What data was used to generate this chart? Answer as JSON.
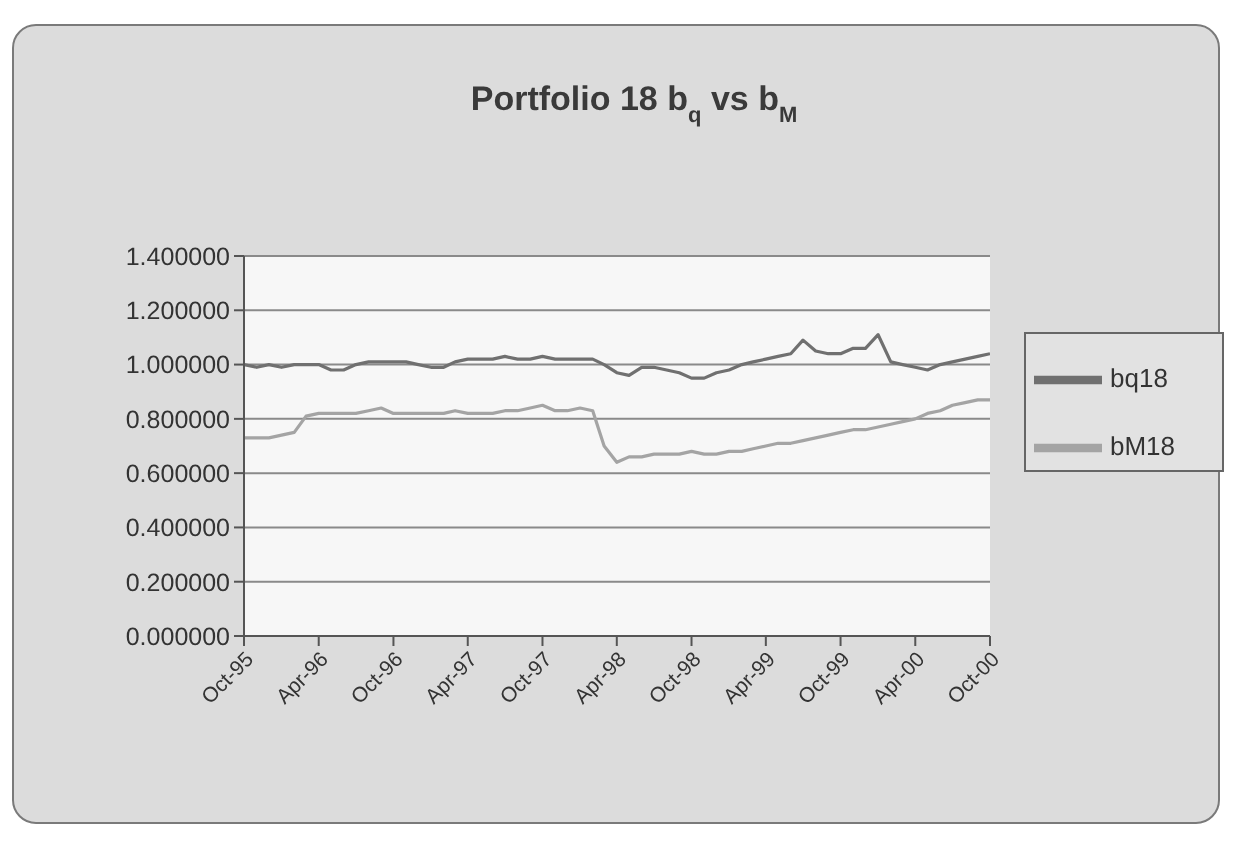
{
  "chart_data": {
    "type": "line",
    "title": "Portfolio 18 b$_{q}$ vs b$_{M}$",
    "x": [
      "1995-10",
      "1995-11",
      "1995-12",
      "1996-01",
      "1996-02",
      "1996-03",
      "1996-04",
      "1996-05",
      "1996-06",
      "1996-07",
      "1996-08",
      "1996-09",
      "1996-10",
      "1996-11",
      "1996-12",
      "1997-01",
      "1997-02",
      "1997-03",
      "1997-04",
      "1997-05",
      "1997-06",
      "1997-07",
      "1997-08",
      "1997-09",
      "1997-10",
      "1997-11",
      "1997-12",
      "1998-01",
      "1998-02",
      "1998-03",
      "1998-04",
      "1998-05",
      "1998-06",
      "1998-07",
      "1998-08",
      "1998-09",
      "1998-10",
      "1998-11",
      "1998-12",
      "1999-01",
      "1999-02",
      "1999-03",
      "1999-04",
      "1999-05",
      "1999-06",
      "1999-07",
      "1999-08",
      "1999-09",
      "1999-10",
      "1999-11",
      "1999-12",
      "2000-01",
      "2000-02",
      "2000-03",
      "2000-04",
      "2000-05",
      "2000-06",
      "2000-07",
      "2000-08",
      "2000-09",
      "2000-10"
    ],
    "series": [
      {
        "name": "bq18",
        "color": "#707070",
        "values": [
          1.0,
          0.99,
          1.0,
          0.99,
          1.0,
          1.0,
          1.0,
          0.98,
          0.98,
          1.0,
          1.01,
          1.01,
          1.01,
          1.01,
          1.0,
          0.99,
          0.99,
          1.01,
          1.02,
          1.02,
          1.02,
          1.03,
          1.02,
          1.02,
          1.03,
          1.02,
          1.02,
          1.02,
          1.02,
          1.0,
          0.97,
          0.96,
          0.99,
          0.99,
          0.98,
          0.97,
          0.95,
          0.95,
          0.97,
          0.98,
          1.0,
          1.01,
          1.02,
          1.03,
          1.04,
          1.09,
          1.05,
          1.04,
          1.04,
          1.06,
          1.06,
          1.11,
          1.01,
          1.0,
          0.99,
          0.98,
          1.0,
          1.01,
          1.02,
          1.03,
          1.04
        ]
      },
      {
        "name": "bM18",
        "color": "#a4a4a4",
        "values": [
          0.73,
          0.73,
          0.73,
          0.74,
          0.75,
          0.81,
          0.82,
          0.82,
          0.82,
          0.82,
          0.83,
          0.84,
          0.82,
          0.82,
          0.82,
          0.82,
          0.82,
          0.83,
          0.82,
          0.82,
          0.82,
          0.83,
          0.83,
          0.84,
          0.85,
          0.83,
          0.83,
          0.84,
          0.83,
          0.7,
          0.64,
          0.66,
          0.66,
          0.67,
          0.67,
          0.67,
          0.68,
          0.67,
          0.67,
          0.68,
          0.68,
          0.69,
          0.7,
          0.71,
          0.71,
          0.72,
          0.73,
          0.74,
          0.75,
          0.76,
          0.76,
          0.77,
          0.78,
          0.79,
          0.8,
          0.82,
          0.83,
          0.85,
          0.86,
          0.87,
          0.87
        ]
      }
    ],
    "xlim": [
      "1995-10",
      "2000-10"
    ],
    "xticks": [
      {
        "value": "1995-10",
        "label": "Oct-95"
      },
      {
        "value": "1996-04",
        "label": "Apr-96"
      },
      {
        "value": "1996-10",
        "label": "Oct-96"
      },
      {
        "value": "1997-04",
        "label": "Apr-97"
      },
      {
        "value": "1997-10",
        "label": "Oct-97"
      },
      {
        "value": "1998-04",
        "label": "Apr-98"
      },
      {
        "value": "1998-10",
        "label": "Oct-98"
      },
      {
        "value": "1999-04",
        "label": "Apr-99"
      },
      {
        "value": "1999-10",
        "label": "Oct-99"
      },
      {
        "value": "2000-04",
        "label": "Apr-00"
      },
      {
        "value": "2000-10",
        "label": "Oct-00"
      }
    ],
    "ylim": [
      0,
      1.4
    ],
    "yticks": [
      {
        "value": 0,
        "label": "0.000000"
      },
      {
        "value": 0.2,
        "label": "0.200000"
      },
      {
        "value": 0.4,
        "label": "0.400000"
      },
      {
        "value": 0.6,
        "label": "0.600000"
      },
      {
        "value": 0.8,
        "label": "0.800000"
      },
      {
        "value": 1.0,
        "label": "1.000000"
      },
      {
        "value": 1.2,
        "label": "1.200000"
      },
      {
        "value": 1.4,
        "label": "1.400000"
      }
    ],
    "grid": "y",
    "legend": "right"
  }
}
